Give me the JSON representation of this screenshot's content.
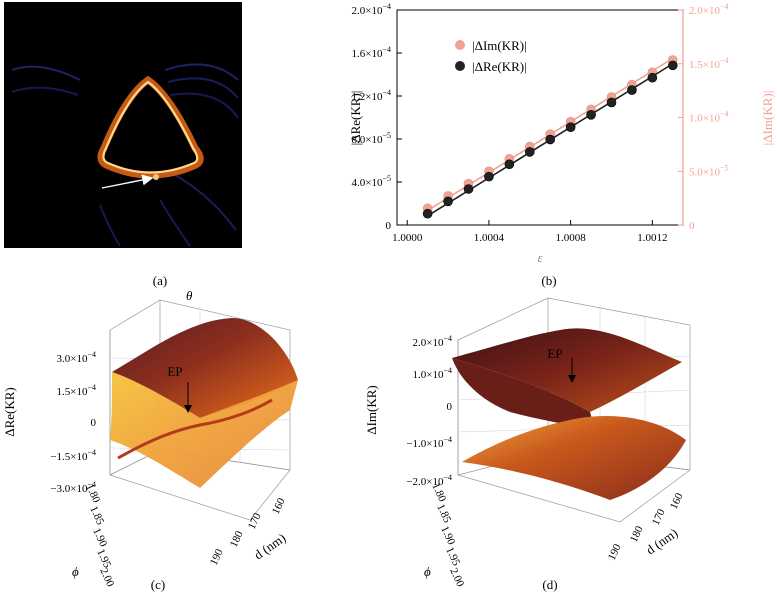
{
  "figure": {
    "panel_labels": [
      "(a)",
      "(b)",
      "(c)",
      "(d)"
    ]
  },
  "panel_a": {
    "description_marker": "point-on-boundary",
    "colors": {
      "background": "#000000",
      "ring_outer": "#c45a14",
      "ring_inner": "#ffe3a0",
      "marker": "#f2c38a"
    }
  },
  "chart_data": [
    {
      "panel": "(b)",
      "type": "scatter",
      "xlabel": "ε",
      "ylabel_left": "|ΔRe(KR)|",
      "ylabel_right": "|ΔIm(KR)|",
      "xlim": [
        0.99995,
        1.00135
      ],
      "ylim_left": [
        0,
        0.0002
      ],
      "ylim_right": [
        0,
        0.0002
      ],
      "x_ticks": [
        "1.0000",
        "1.0004",
        "1.0008",
        "1.0012"
      ],
      "x_tick_values": [
        1.0,
        1.0004,
        1.0008,
        1.0012
      ],
      "y_ticks_left": [
        {
          "value": 0,
          "base": "0",
          "exp": ""
        },
        {
          "value": 4e-05,
          "base": "4.0×10",
          "exp": "−5"
        },
        {
          "value": 8e-05,
          "base": "8.0×10",
          "exp": "−5"
        },
        {
          "value": 0.00012,
          "base": "1.2×10",
          "exp": "−4"
        },
        {
          "value": 0.00016,
          "base": "1.6×10",
          "exp": "−4"
        },
        {
          "value": 0.0002,
          "base": "2.0×10",
          "exp": "−4"
        }
      ],
      "y_ticks_right": [
        {
          "value": 0,
          "base": "0",
          "exp": ""
        },
        {
          "value": 5e-05,
          "base": "5.0×10",
          "exp": "−5"
        },
        {
          "value": 0.0001,
          "base": "1.0×10",
          "exp": "−4"
        },
        {
          "value": 0.00015,
          "base": "1.5×10",
          "exp": "−4"
        },
        {
          "value": 0.0002,
          "base": "2.0×10",
          "exp": "−4"
        }
      ],
      "legend": [
        "|ΔIm(KR)|",
        "|ΔRe(KR)|"
      ],
      "legend_position": "top-left",
      "series": [
        {
          "name": "|ΔIm(KR)|",
          "color": "#f0a293",
          "x": [
            1.0001,
            1.0002,
            1.0003,
            1.0004,
            1.0005,
            1.0006,
            1.0007,
            1.0008,
            1.0009,
            1.001,
            1.0011,
            1.0012,
            1.0013
          ],
          "y": [
            1.55e-05,
            2.7e-05,
            3.85e-05,
            5e-05,
            6.15e-05,
            7.3e-05,
            8.45e-05,
            9.6e-05,
            0.0001075,
            0.000119,
            0.0001305,
            0.000142,
            0.0001535
          ],
          "fit": [
            1.35e-05,
            0.000155
          ]
        },
        {
          "name": "|ΔRe(KR)|",
          "color": "#222222",
          "x": [
            1.0001,
            1.0002,
            1.0003,
            1.0004,
            1.0005,
            1.0006,
            1.0007,
            1.0008,
            1.0009,
            1.001,
            1.0011,
            1.0012,
            1.0013
          ],
          "y": [
            1.05e-05,
            2.2e-05,
            3.35e-05,
            4.5e-05,
            5.65e-05,
            6.8e-05,
            7.95e-05,
            9.1e-05,
            0.0001025,
            0.000114,
            0.0001255,
            0.000137,
            0.0001485
          ],
          "fit": [
            8.5e-06,
            0.00015
          ]
        }
      ]
    },
    {
      "panel": "(c)",
      "type": "surface",
      "zlabel": "ΔRe(KR)",
      "z_ticks": [
        {
          "base": "3.0×10",
          "exp": "−4"
        },
        {
          "base": "1.5×10",
          "exp": "−4"
        },
        {
          "base": "0",
          "exp": ""
        },
        {
          "base": "−1.5×10",
          "exp": "−4"
        },
        {
          "base": "−3.0×10",
          "exp": "−4"
        }
      ],
      "theta_label": "θ",
      "phi_label": "ϕ",
      "phi_ticks": [
        "1.80",
        "1.85",
        "1.90",
        "1.95",
        "2.00"
      ],
      "d_label": "d (nm)",
      "d_ticks": [
        "160",
        "170",
        "180",
        "190"
      ],
      "annotation": "EP"
    },
    {
      "panel": "(d)",
      "type": "surface",
      "zlabel": "ΔIm(KR)",
      "z_ticks": [
        {
          "base": "2.0×10",
          "exp": "−4"
        },
        {
          "base": "1.0×10",
          "exp": "−4"
        },
        {
          "base": "0",
          "exp": ""
        },
        {
          "base": "−1.0×10",
          "exp": "−4"
        },
        {
          "base": "−2.0×10",
          "exp": "−4"
        }
      ],
      "phi_label": "ϕ",
      "phi_ticks": [
        "1.80",
        "1.85",
        "1.90",
        "1.95",
        "2.00"
      ],
      "d_label": "d (nm)",
      "d_ticks": [
        "160",
        "170",
        "180",
        "190"
      ],
      "annotation": "EP"
    }
  ]
}
